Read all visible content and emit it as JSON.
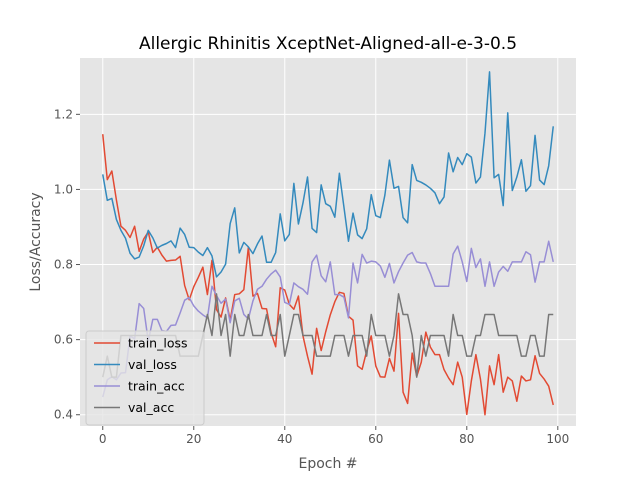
{
  "chart_data": {
    "type": "line",
    "title": "Allergic Rhinitis XceptNet-Aligned-all-e-3-0.5",
    "xlabel": "Epoch #",
    "ylabel": "Loss/Accuracy",
    "xlim": [
      -5,
      104
    ],
    "ylim": [
      0.37,
      1.35
    ],
    "xticks": [
      0,
      20,
      40,
      60,
      80,
      100
    ],
    "yticks": [
      0.4,
      0.6,
      0.8,
      1.0,
      1.2
    ],
    "xtick_labels": [
      "0",
      "20",
      "40",
      "60",
      "80",
      "100"
    ],
    "ytick_labels": [
      "0.4",
      "0.6",
      "0.8",
      "1.0",
      "1.2"
    ],
    "grid": true,
    "legend_position": "lower-left",
    "colors": {
      "plot_background": "#e5e5e5",
      "grid": "#ffffff",
      "train_loss": "#e24a33",
      "val_loss": "#348abd",
      "train_acc": "#988ed5",
      "val_acc": "#777777"
    },
    "series": [
      {
        "name": "train_loss",
        "color": "#e24a33",
        "values": [
          1.147,
          1.026,
          1.049,
          0.972,
          0.902,
          0.891,
          0.872,
          0.902,
          0.835,
          0.868,
          0.887,
          0.832,
          0.846,
          0.825,
          0.809,
          0.811,
          0.812,
          0.822,
          0.744,
          0.706,
          0.741,
          0.766,
          0.793,
          0.72,
          0.811,
          0.68,
          0.66,
          0.711,
          0.652,
          0.72,
          0.722,
          0.733,
          0.846,
          0.716,
          0.723,
          0.683,
          0.682,
          0.618,
          0.581,
          0.738,
          0.732,
          0.694,
          0.681,
          0.716,
          0.61,
          0.556,
          0.508,
          0.63,
          0.571,
          0.621,
          0.666,
          0.701,
          0.726,
          0.723,
          0.662,
          0.652,
          0.53,
          0.521,
          0.57,
          0.61,
          0.53,
          0.501,
          0.5,
          0.55,
          0.516,
          0.67,
          0.46,
          0.43,
          0.564,
          0.502,
          0.54,
          0.62,
          0.58,
          0.56,
          0.56,
          0.52,
          0.498,
          0.48,
          0.54,
          0.5,
          0.401,
          0.49,
          0.56,
          0.495,
          0.4,
          0.53,
          0.48,
          0.56,
          0.46,
          0.5,
          0.49,
          0.436,
          0.503,
          0.49,
          0.493,
          0.557,
          0.51,
          0.495,
          0.476,
          0.426
        ]
      },
      {
        "name": "val_loss",
        "color": "#348abd",
        "values": [
          1.04,
          0.971,
          0.976,
          0.92,
          0.891,
          0.87,
          0.83,
          0.815,
          0.82,
          0.85,
          0.891,
          0.871,
          0.844,
          0.851,
          0.856,
          0.863,
          0.845,
          0.897,
          0.88,
          0.846,
          0.845,
          0.833,
          0.824,
          0.845,
          0.823,
          0.767,
          0.78,
          0.801,
          0.909,
          0.951,
          0.831,
          0.859,
          0.847,
          0.829,
          0.855,
          0.876,
          0.806,
          0.806,
          0.832,
          0.935,
          0.863,
          0.88,
          1.016,
          0.908,
          0.964,
          1.033,
          0.896,
          0.885,
          1.012,
          0.962,
          0.955,
          0.926,
          1.043,
          0.953,
          0.862,
          0.937,
          0.879,
          0.869,
          0.895,
          0.986,
          0.93,
          0.925,
          0.985,
          1.078,
          1.003,
          1.008,
          0.925,
          0.911,
          1.066,
          1.024,
          1.019,
          1.012,
          1.003,
          0.991,
          0.962,
          0.98,
          1.097,
          1.047,
          1.085,
          1.066,
          1.095,
          1.086,
          1.017,
          1.033,
          1.15,
          1.313,
          1.031,
          1.04,
          0.957,
          1.204,
          0.997,
          1.033,
          1.079,
          0.995,
          1.01,
          1.144,
          1.025,
          1.013,
          1.063,
          1.168
        ]
      },
      {
        "name": "train_acc",
        "color": "#988ed5",
        "values": [
          0.447,
          0.493,
          0.501,
          0.493,
          0.511,
          0.512,
          0.61,
          0.602,
          0.696,
          0.683,
          0.596,
          0.654,
          0.654,
          0.624,
          0.622,
          0.638,
          0.639,
          0.671,
          0.705,
          0.712,
          0.69,
          0.676,
          0.666,
          0.658,
          0.742,
          0.717,
          0.697,
          0.708,
          0.645,
          0.703,
          0.71,
          0.667,
          0.655,
          0.703,
          0.734,
          0.742,
          0.761,
          0.775,
          0.785,
          0.767,
          0.699,
          0.694,
          0.751,
          0.741,
          0.734,
          0.721,
          0.807,
          0.825,
          0.77,
          0.754,
          0.807,
          0.72,
          0.72,
          0.713,
          0.658,
          0.804,
          0.751,
          0.827,
          0.804,
          0.809,
          0.807,
          0.796,
          0.766,
          0.803,
          0.751,
          0.781,
          0.804,
          0.825,
          0.832,
          0.807,
          0.804,
          0.804,
          0.776,
          0.742,
          0.742,
          0.742,
          0.742,
          0.828,
          0.849,
          0.807,
          0.755,
          0.843,
          0.792,
          0.815,
          0.742,
          0.807,
          0.742,
          0.78,
          0.795,
          0.782,
          0.807,
          0.807,
          0.807,
          0.834,
          0.826,
          0.753,
          0.807,
          0.807,
          0.862,
          0.807
        ]
      },
      {
        "name": "val_acc",
        "color": "#777777",
        "values": [
          0.5,
          0.556,
          0.5,
          0.5,
          0.611,
          0.611,
          0.611,
          0.611,
          0.611,
          0.611,
          0.611,
          0.611,
          0.611,
          0.611,
          0.611,
          0.611,
          0.611,
          0.556,
          0.556,
          0.556,
          0.556,
          0.556,
          0.611,
          0.667,
          0.611,
          0.722,
          0.611,
          0.667,
          0.556,
          0.667,
          0.611,
          0.611,
          0.667,
          0.611,
          0.611,
          0.611,
          0.667,
          0.611,
          0.611,
          0.667,
          0.556,
          0.611,
          0.667,
          0.667,
          0.611,
          0.611,
          0.611,
          0.556,
          0.556,
          0.556,
          0.556,
          0.611,
          0.611,
          0.611,
          0.556,
          0.611,
          0.611,
          0.611,
          0.556,
          0.667,
          0.611,
          0.611,
          0.611,
          0.556,
          0.611,
          0.722,
          0.667,
          0.667,
          0.611,
          0.5,
          0.611,
          0.556,
          0.611,
          0.611,
          0.611,
          0.611,
          0.556,
          0.667,
          0.611,
          0.611,
          0.556,
          0.556,
          0.611,
          0.611,
          0.667,
          0.667,
          0.667,
          0.611,
          0.611,
          0.611,
          0.611,
          0.611,
          0.556,
          0.556,
          0.611,
          0.611,
          0.556,
          0.556,
          0.667,
          0.667
        ]
      }
    ]
  }
}
